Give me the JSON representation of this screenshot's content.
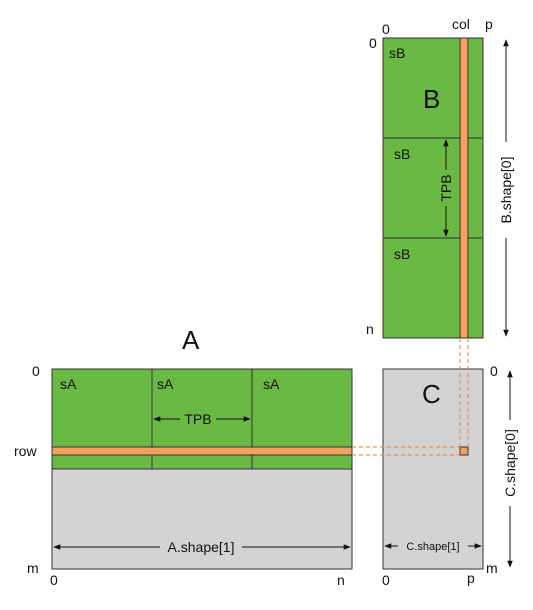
{
  "colors": {
    "green": "#6ab945",
    "orange": "#f5a05c",
    "gray": "#d3d3d3",
    "border": "#333333",
    "background": "#ffffff"
  },
  "matrix_b": {
    "title": "B",
    "col_start_label": "0",
    "col_label": "col",
    "col_end_label": "p",
    "row_start_label": "0",
    "row_end_label": "n",
    "tile_labels": [
      "sB",
      "sB",
      "sB"
    ],
    "tpb_label": "TPB",
    "shape_label": "B.shape[0]"
  },
  "matrix_a": {
    "title": "A",
    "row_start_label": "0",
    "row_label": "row",
    "row_end_label": "m",
    "col_start_label": "0",
    "col_end_label": "n",
    "tile_labels": [
      "sA",
      "sA",
      "sA"
    ],
    "tpb_label": "TPB",
    "shape_label": "A.shape[1]"
  },
  "matrix_c": {
    "title": "C",
    "row_start_label": "0",
    "row_end_label": "m",
    "col_start_label": "0",
    "col_end_label": "p",
    "shape0_label": "C.shape[0]",
    "shape1_label": "C.shape[1]"
  }
}
